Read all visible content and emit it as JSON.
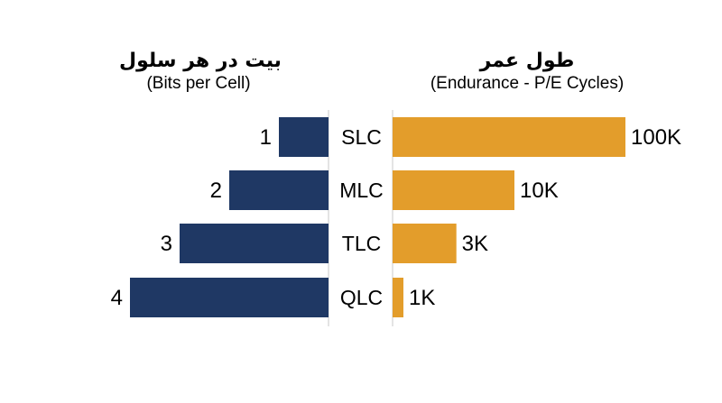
{
  "chart_data": {
    "type": "bar",
    "categories": [
      "SLC",
      "MLC",
      "TLC",
      "QLC"
    ],
    "left_panel": {
      "title": "بیت در هر سلول",
      "subtitle": "(Bits per Cell)",
      "values": [
        1,
        2,
        3,
        4
      ],
      "value_labels": [
        "1",
        "2",
        "3",
        "4"
      ],
      "color": "#1f3864"
    },
    "right_panel": {
      "title": "طول عمر",
      "subtitle": "(Endurance - P/E Cycles)",
      "values": [
        100000,
        10000,
        3000,
        1000
      ],
      "value_labels": [
        "100K",
        "10K",
        "3K",
        "1K"
      ],
      "scale": "log",
      "color": "#e39d2b"
    },
    "grid": false,
    "legend": "none"
  }
}
